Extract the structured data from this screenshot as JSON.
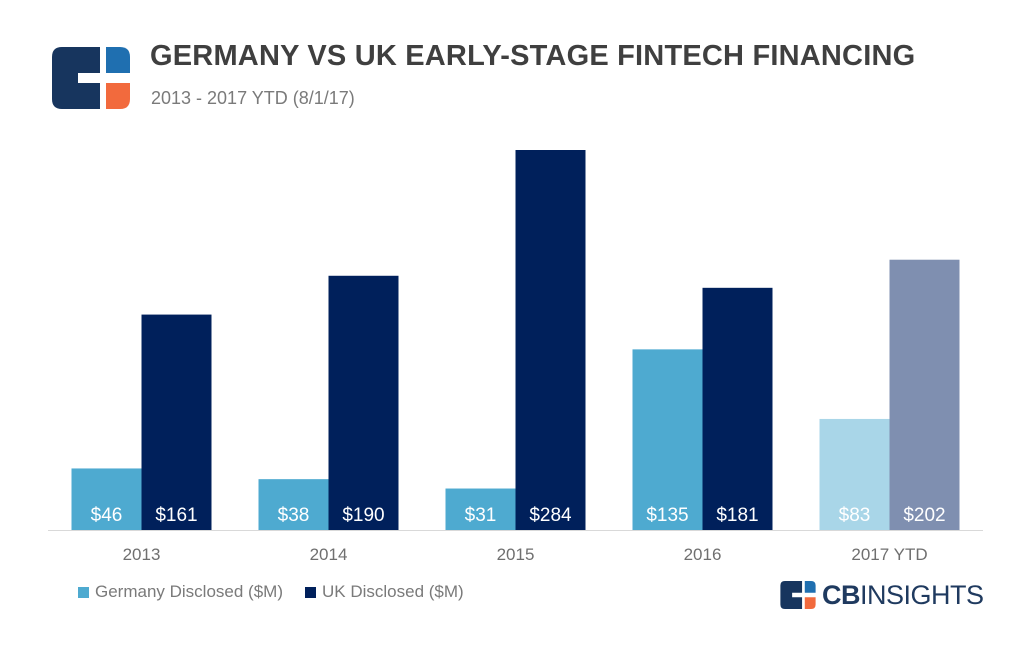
{
  "header": {
    "title": "GERMANY VS UK EARLY-STAGE FINTECH FINANCING",
    "subtitle": "2013 - 2017 YTD (8/1/17)"
  },
  "colors": {
    "germany": "#4eaad0",
    "uk": "#00205b",
    "germany_ytd": "#a9d6e8",
    "uk_ytd": "#7f8fb0",
    "logo_dark": "#17355e",
    "logo_orange": "#f26a3d",
    "logo_blue": "#1f6fb0"
  },
  "brand": {
    "bold": "CB",
    "rest": "INSIGHTS"
  },
  "chart_data": {
    "type": "bar",
    "categories": [
      "2013",
      "2014",
      "2015",
      "2016",
      "2017 YTD"
    ],
    "series": [
      {
        "name": "Germany Disclosed ($M)",
        "values": [
          46,
          38,
          31,
          135,
          83
        ],
        "labels": [
          "$46",
          "$38",
          "$31",
          "$135",
          "$83"
        ]
      },
      {
        "name": "UK Disclosed ($M)",
        "values": [
          161,
          190,
          284,
          181,
          202
        ],
        "labels": [
          "$161",
          "$190",
          "$284",
          "$181",
          "$202"
        ]
      }
    ],
    "ylim": [
      0,
      284
    ],
    "grid": false,
    "legend": "bottom-left"
  }
}
